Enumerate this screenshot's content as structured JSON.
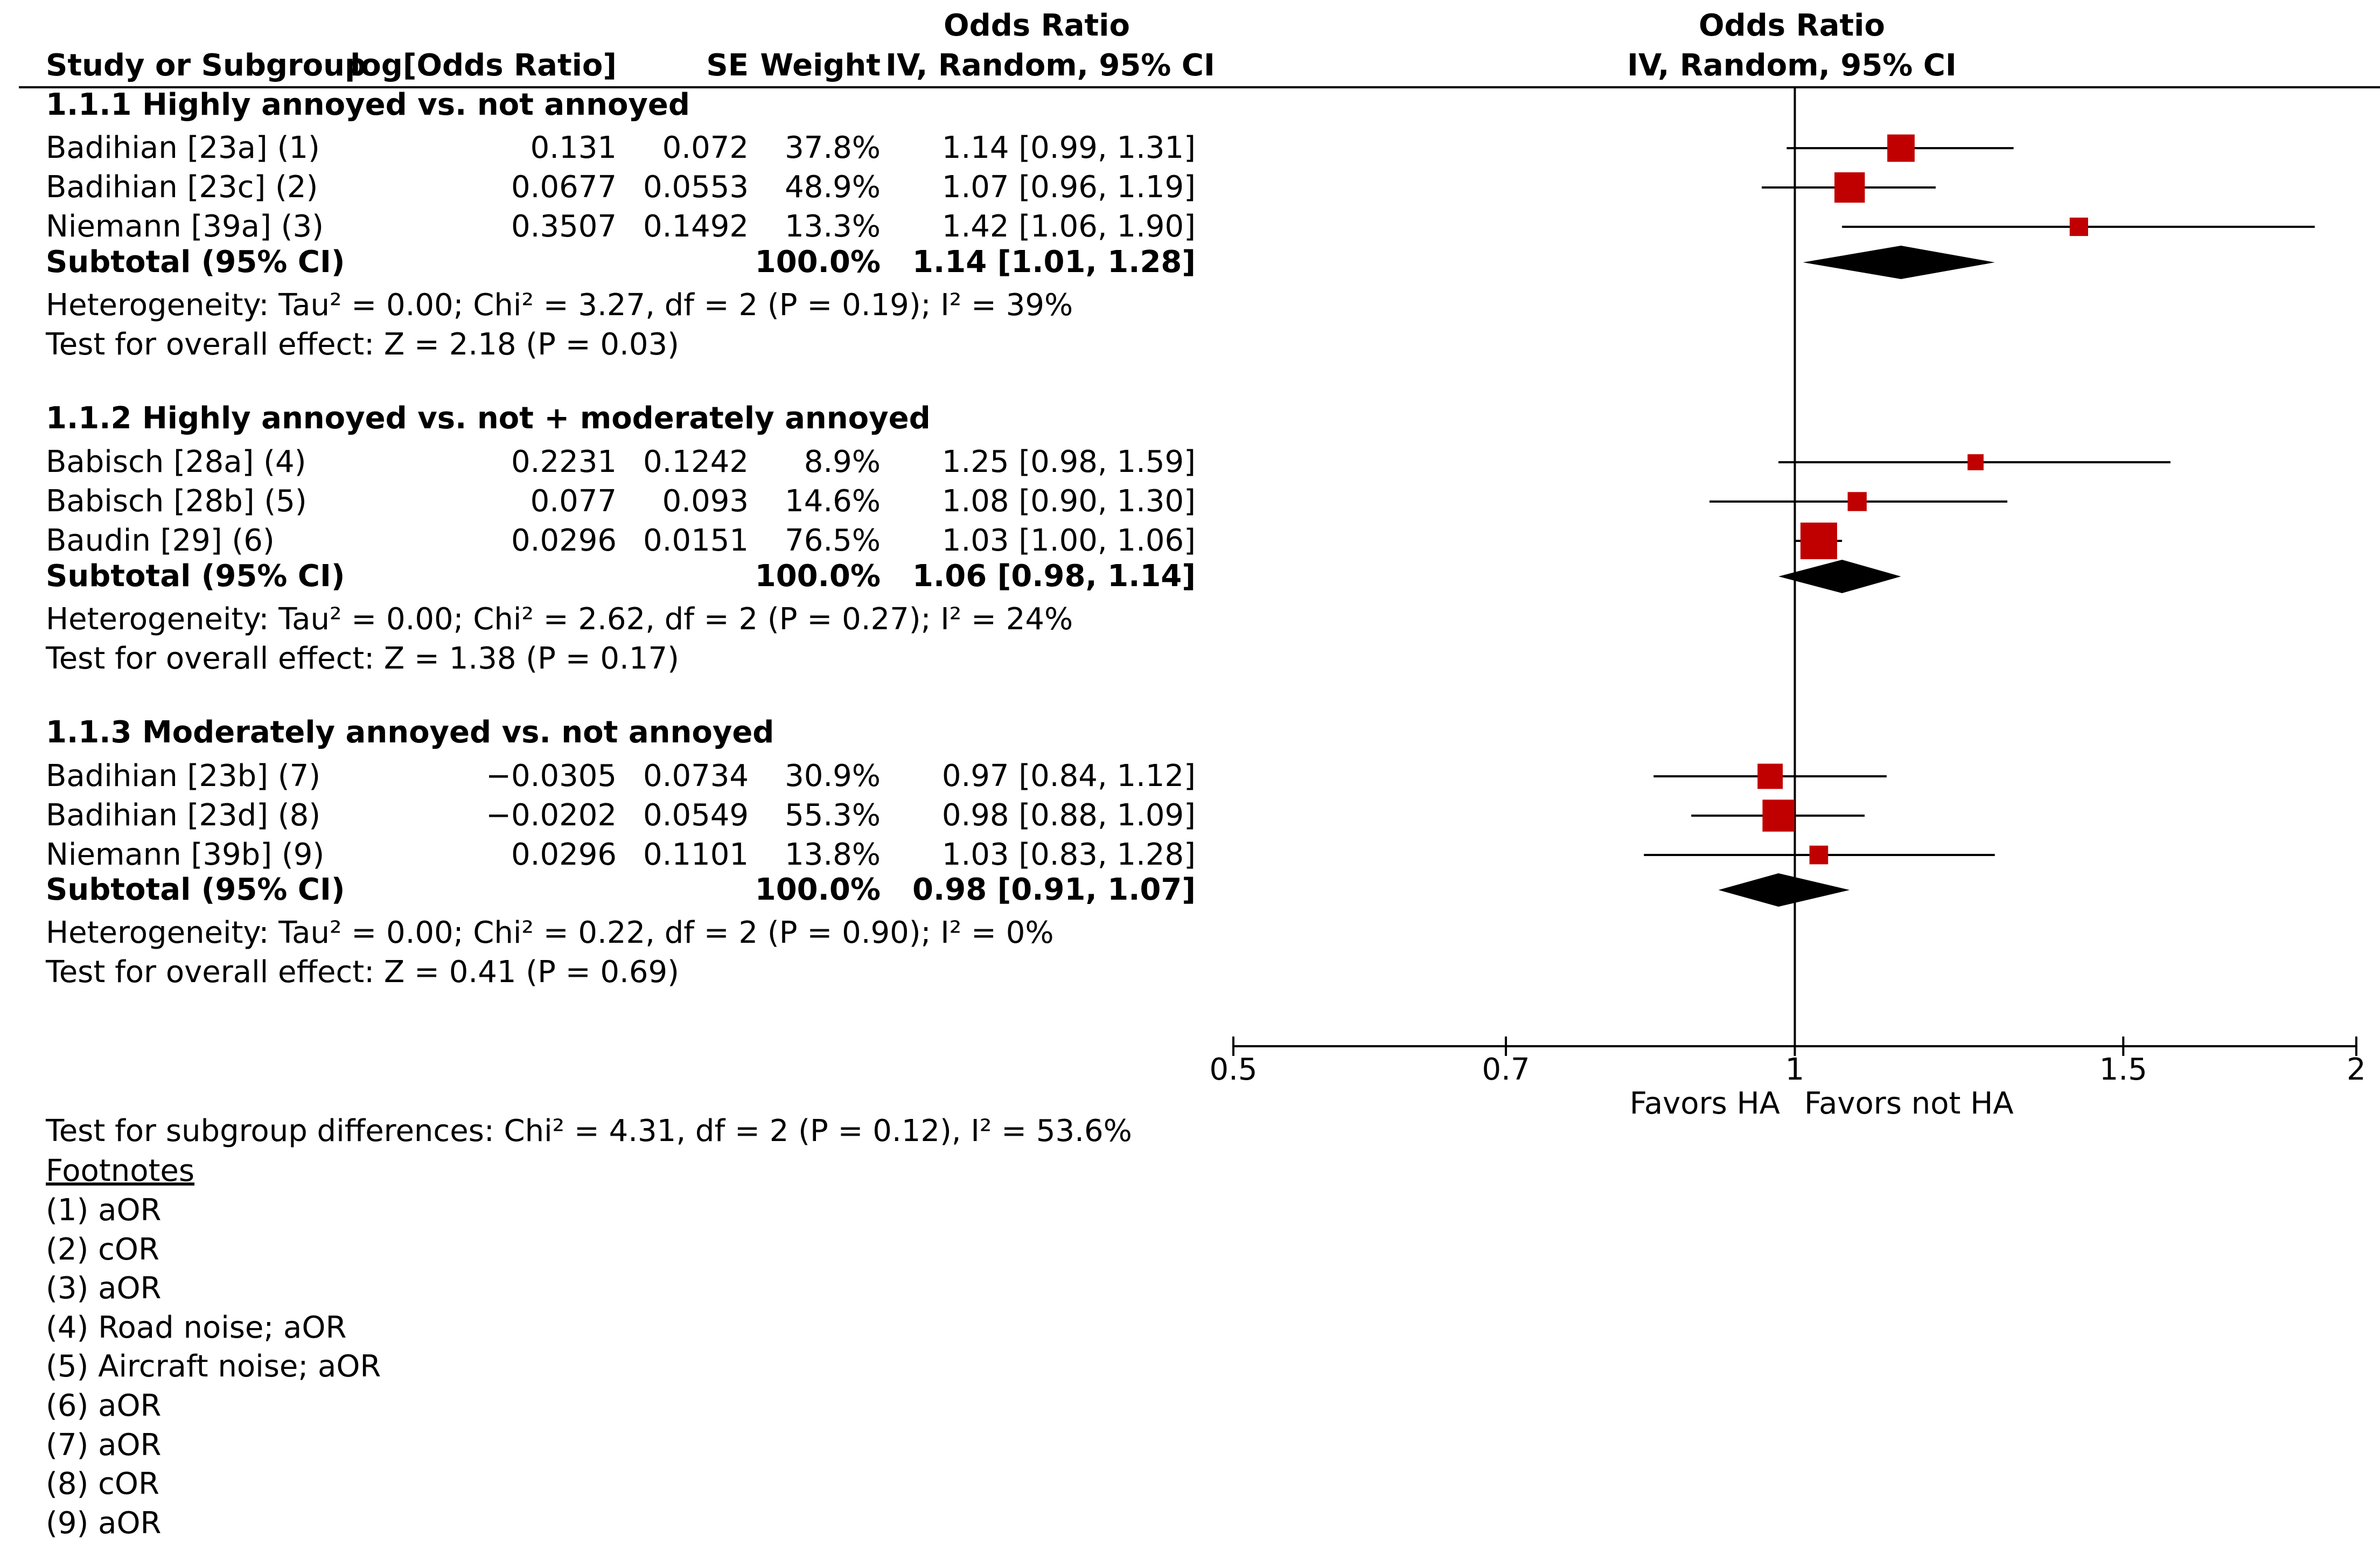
{
  "header": {
    "study_label": "Study or Subgroup",
    "logor_label": "log[Odds Ratio]",
    "se_label": "SE",
    "weight_label": "Weight",
    "or_title": "Odds Ratio",
    "or_method": "IV, Random, 95% CI",
    "plot_title": "Odds Ratio",
    "plot_method": "IV, Random, 95% CI"
  },
  "subgroups": [
    {
      "title": "1.1.1 Highly annoyed vs. not annoyed",
      "studies": [
        {
          "name": "Badihian [23a] (1)",
          "logor": "0.131",
          "se": "0.072",
          "weight": "37.8%",
          "ci_text": "1.14 [0.99, 1.31]"
        },
        {
          "name": "Badihian [23c] (2)",
          "logor": "0.0677",
          "se": "0.0553",
          "weight": "48.9%",
          "ci_text": "1.07 [0.96, 1.19]"
        },
        {
          "name": "Niemann [39a] (3)",
          "logor": "0.3507",
          "se": "0.1492",
          "weight": "13.3%",
          "ci_text": "1.42 [1.06, 1.90]"
        }
      ],
      "subtotal": {
        "label": "Subtotal (95% CI)",
        "weight": "100.0%",
        "ci_text": "1.14 [1.01, 1.28]"
      },
      "heterogeneity": "Heterogeneity: Tau² = 0.00; Chi² = 3.27, df = 2 (P = 0.19); I² = 39%",
      "overall_effect": "Test for overall effect: Z = 2.18 (P = 0.03)"
    },
    {
      "title": "1.1.2 Highly annoyed vs. not + moderately annoyed",
      "studies": [
        {
          "name": "Babisch [28a] (4)",
          "logor": "0.2231",
          "se": "0.1242",
          "weight": "8.9%",
          "ci_text": "1.25 [0.98, 1.59]"
        },
        {
          "name": "Babisch [28b] (5)",
          "logor": "0.077",
          "se": "0.093",
          "weight": "14.6%",
          "ci_text": "1.08 [0.90, 1.30]"
        },
        {
          "name": "Baudin [29] (6)",
          "logor": "0.0296",
          "se": "0.0151",
          "weight": "76.5%",
          "ci_text": "1.03 [1.00, 1.06]"
        }
      ],
      "subtotal": {
        "label": "Subtotal (95% CI)",
        "weight": "100.0%",
        "ci_text": "1.06 [0.98, 1.14]"
      },
      "heterogeneity": "Heterogeneity: Tau² = 0.00; Chi² = 2.62, df = 2 (P = 0.27); I² = 24%",
      "overall_effect": "Test for overall effect: Z = 1.38 (P = 0.17)"
    },
    {
      "title": "1.1.3 Moderately annoyed vs. not annoyed",
      "studies": [
        {
          "name": "Badihian [23b] (7)",
          "logor": "−0.0305",
          "se": "0.0734",
          "weight": "30.9%",
          "ci_text": "0.97 [0.84, 1.12]"
        },
        {
          "name": "Badihian [23d] (8)",
          "logor": "−0.0202",
          "se": "0.0549",
          "weight": "55.3%",
          "ci_text": "0.98 [0.88, 1.09]"
        },
        {
          "name": "Niemann [39b] (9)",
          "logor": "0.0296",
          "se": "0.1101",
          "weight": "13.8%",
          "ci_text": "1.03 [0.83, 1.28]"
        }
      ],
      "subtotal": {
        "label": "Subtotal (95% CI)",
        "weight": "100.0%",
        "ci_text": "0.98 [0.91, 1.07]"
      },
      "heterogeneity": "Heterogeneity: Tau² = 0.00; Chi² = 0.22, df = 2 (P = 0.90); I² = 0%",
      "overall_effect": "Test for overall effect: Z = 0.41 (P = 0.69)"
    }
  ],
  "subgroup_differences": "Test for subgroup differences: Chi² = 4.31, df = 2 (P = 0.12), I² = 53.6%",
  "footnotes": {
    "title": "Footnotes",
    "items": [
      "(1) aOR",
      "(2) cOR",
      "(3) aOR",
      "(4) Road noise; aOR",
      "(5) Aircraft noise; aOR",
      "(6) aOR",
      "(7) aOR",
      "(8) cOR",
      "(9) aOR"
    ]
  },
  "axis": {
    "ticks": [
      "0.5",
      "0.7",
      "1",
      "1.5",
      "2"
    ],
    "favors_left": "Favors HA",
    "favors_right": "Favors not HA"
  },
  "colors": {
    "study_marker": "#c00000",
    "diamond": "#000000"
  },
  "chart_data": {
    "type": "forest",
    "title": "Odds Ratio",
    "subtitle": "IV, Random, 95% CI",
    "scale": "log",
    "xlim": [
      0.5,
      2
    ],
    "null_value": 1,
    "ticks": [
      0.5,
      0.7,
      1,
      1.5,
      2
    ],
    "xlabel_left": "Favors HA",
    "xlabel_right": "Favors not HA",
    "studies": [
      {
        "subgroup": 0,
        "name": "Badihian [23a] (1)",
        "or": 1.14,
        "lo": 0.99,
        "hi": 1.31,
        "weight": 37.8
      },
      {
        "subgroup": 0,
        "name": "Badihian [23c] (2)",
        "or": 1.07,
        "lo": 0.96,
        "hi": 1.19,
        "weight": 48.9
      },
      {
        "subgroup": 0,
        "name": "Niemann [39a] (3)",
        "or": 1.42,
        "lo": 1.06,
        "hi": 1.9,
        "weight": 13.3
      },
      {
        "subgroup": 1,
        "name": "Babisch [28a] (4)",
        "or": 1.25,
        "lo": 0.98,
        "hi": 1.59,
        "weight": 8.9
      },
      {
        "subgroup": 1,
        "name": "Babisch [28b] (5)",
        "or": 1.08,
        "lo": 0.9,
        "hi": 1.3,
        "weight": 14.6
      },
      {
        "subgroup": 1,
        "name": "Baudin [29] (6)",
        "or": 1.03,
        "lo": 1.0,
        "hi": 1.06,
        "weight": 76.5
      },
      {
        "subgroup": 2,
        "name": "Badihian [23b] (7)",
        "or": 0.97,
        "lo": 0.84,
        "hi": 1.12,
        "weight": 30.9
      },
      {
        "subgroup": 2,
        "name": "Badihian [23d] (8)",
        "or": 0.98,
        "lo": 0.88,
        "hi": 1.09,
        "weight": 55.3
      },
      {
        "subgroup": 2,
        "name": "Niemann [39b] (9)",
        "or": 1.03,
        "lo": 0.83,
        "hi": 1.28,
        "weight": 13.8
      }
    ],
    "subtotals": [
      {
        "subgroup": 0,
        "or": 1.14,
        "lo": 1.01,
        "hi": 1.28
      },
      {
        "subgroup": 1,
        "or": 1.06,
        "lo": 0.98,
        "hi": 1.14
      },
      {
        "subgroup": 2,
        "or": 0.98,
        "lo": 0.91,
        "hi": 1.07
      }
    ]
  }
}
